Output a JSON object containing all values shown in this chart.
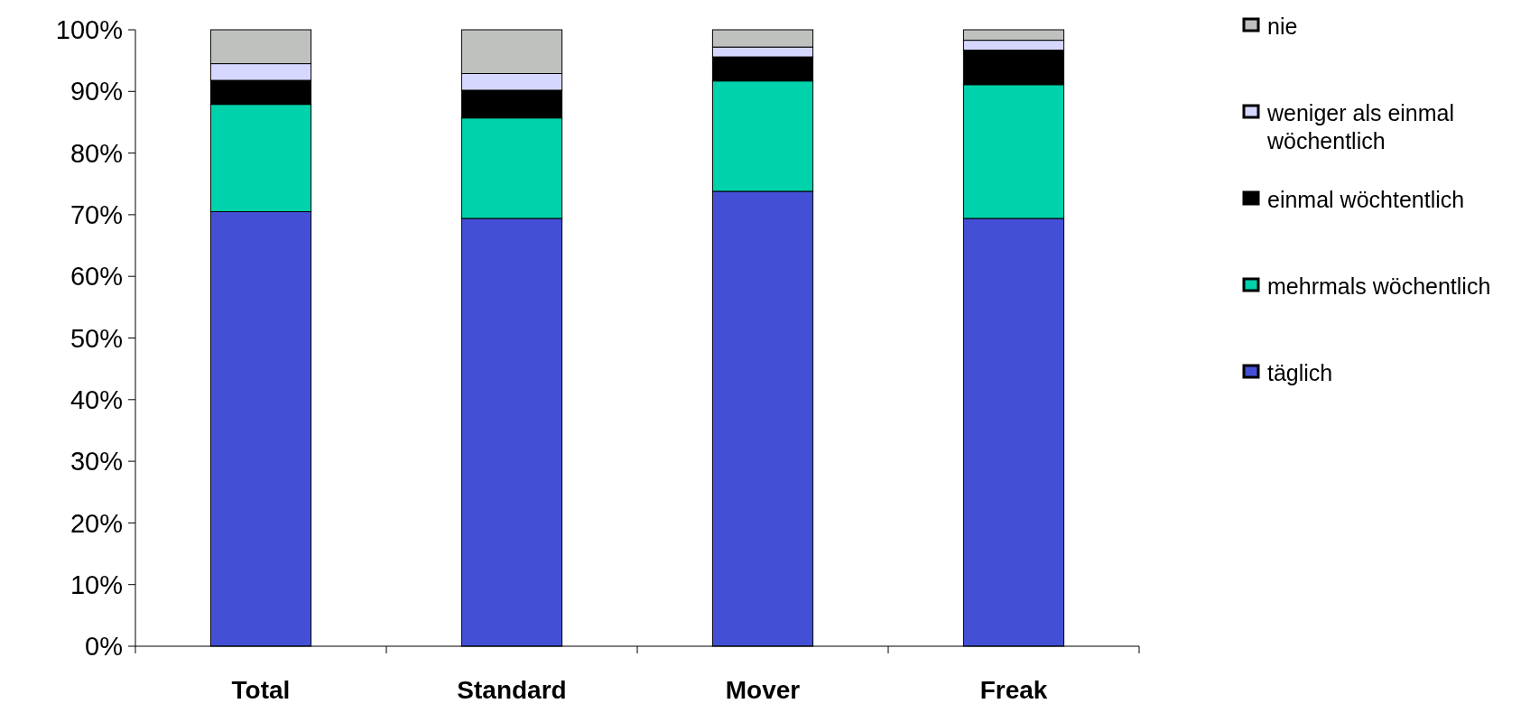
{
  "chart_data": {
    "type": "bar",
    "stacked": true,
    "categories": [
      "Total",
      "Standard",
      "Mover",
      "Freak"
    ],
    "series": [
      {
        "name": "täglich",
        "color": "#4350d6",
        "values": [
          70.5,
          69.4,
          73.8,
          69.4
        ]
      },
      {
        "name": "mehrmals wöchentlich",
        "color": "#00d2ab",
        "values": [
          17.4,
          16.3,
          17.9,
          21.7
        ]
      },
      {
        "name": "einmal wöchtentlich",
        "color": "#000000",
        "values": [
          3.9,
          4.5,
          3.9,
          5.6
        ]
      },
      {
        "name": "weniger als einmal wöchentlich",
        "color": "#d5d7ff",
        "values": [
          2.7,
          2.7,
          1.6,
          1.6
        ]
      },
      {
        "name": "nie",
        "color": "#bfc1bf",
        "values": [
          5.5,
          7.1,
          2.8,
          1.7
        ]
      }
    ],
    "ylim": [
      0,
      100
    ],
    "yticks": [
      {
        "value": 0,
        "label": "0%"
      },
      {
        "value": 10,
        "label": "10%"
      },
      {
        "value": 20,
        "label": "20%"
      },
      {
        "value": 30,
        "label": "30%"
      },
      {
        "value": 40,
        "label": "40%"
      },
      {
        "value": 50,
        "label": "50%"
      },
      {
        "value": 60,
        "label": "60%"
      },
      {
        "value": 70,
        "label": "70%"
      },
      {
        "value": 80,
        "label": "80%"
      },
      {
        "value": 90,
        "label": "90%"
      },
      {
        "value": 100,
        "label": "100%"
      }
    ],
    "legend": "right"
  }
}
